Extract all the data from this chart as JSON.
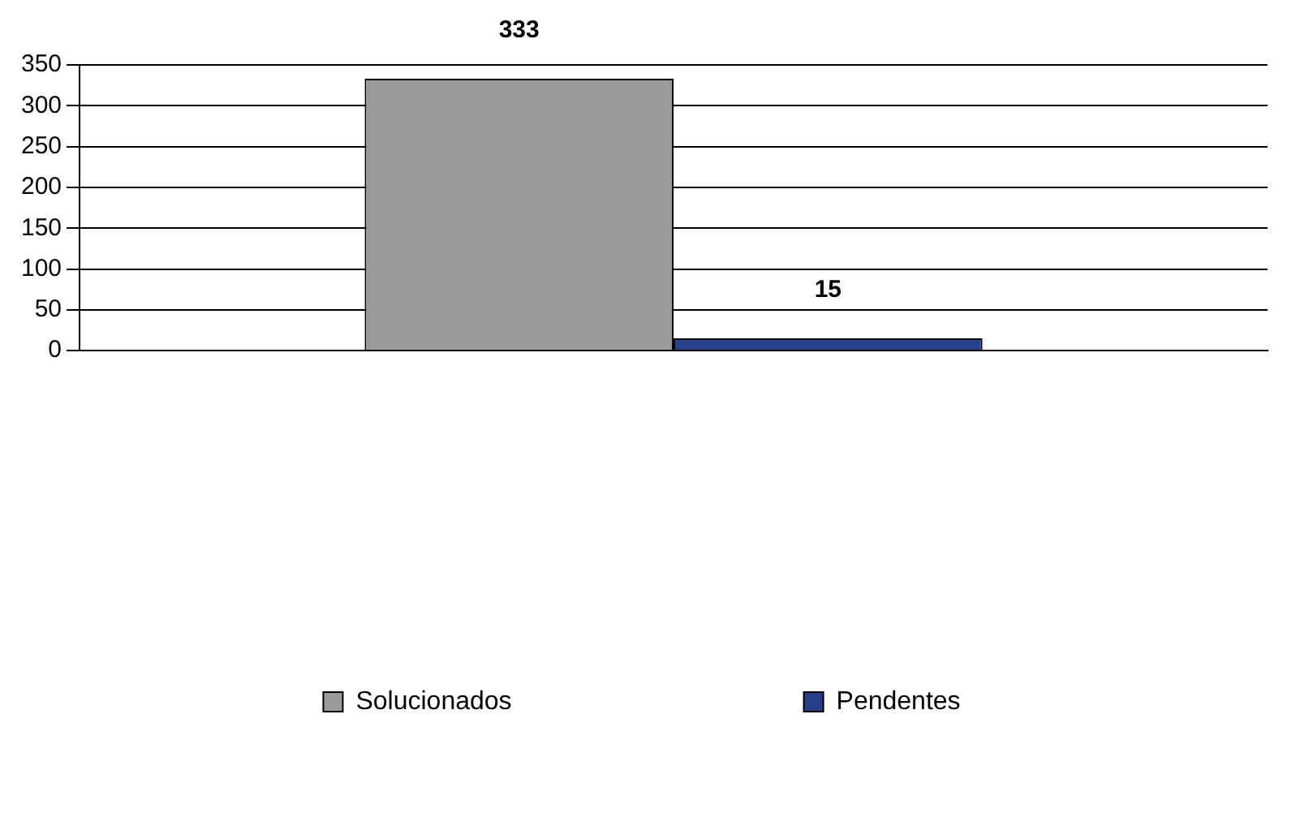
{
  "chart_data": {
    "type": "bar",
    "categories": [
      null
    ],
    "series": [
      {
        "name": "Solucionados",
        "color": "#9a9a9a",
        "values": [
          333
        ]
      },
      {
        "name": "Pendentes",
        "color": "#27408b",
        "values": [
          15
        ]
      }
    ],
    "ylim": [
      0,
      350
    ],
    "yticks": [
      0,
      50,
      100,
      150,
      200,
      250,
      300,
      350
    ],
    "grid": "y",
    "legend": "bottom",
    "data_labels": true
  }
}
